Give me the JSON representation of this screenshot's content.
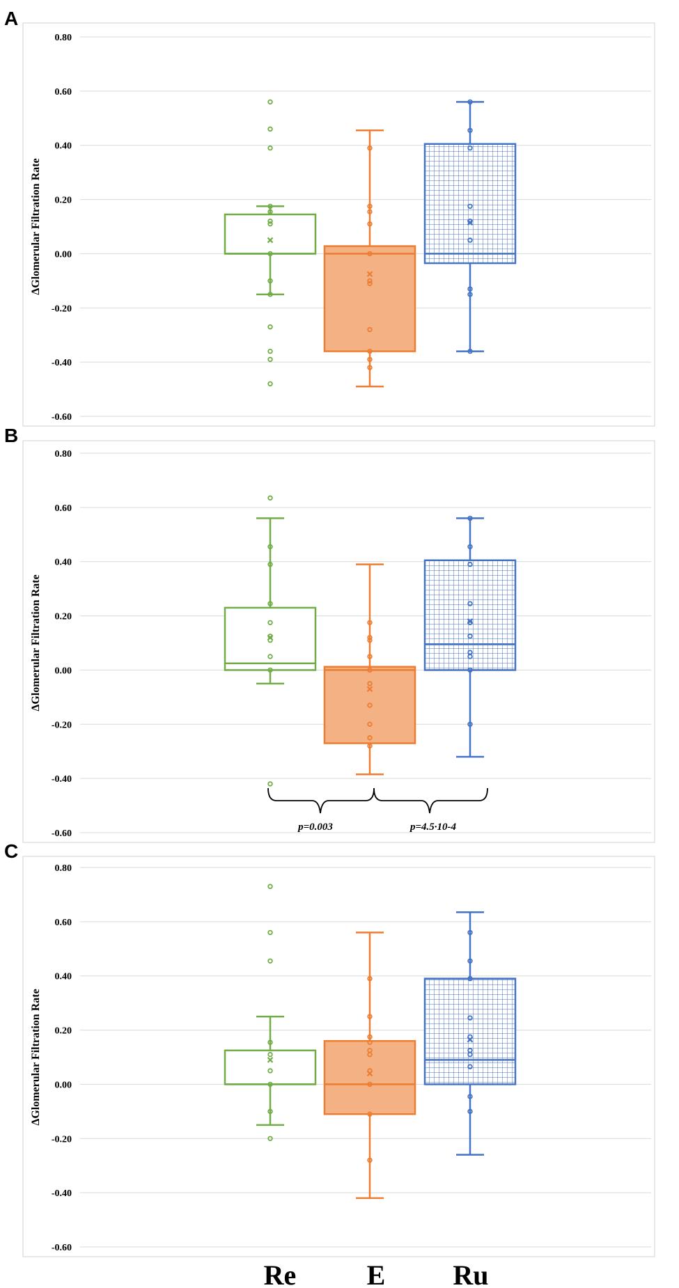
{
  "categories": [
    "Re",
    "E",
    "Ru"
  ],
  "colors": {
    "Re": "#70AD47",
    "E": "#ED7D31",
    "Ru": "#4472C4",
    "E_fill": "#F4B183",
    "grid": "#D9D9D9",
    "frame": "#D0D0D0"
  },
  "chart_data": [
    {
      "type": "box",
      "panel": "A",
      "ylabel": "ΔGlomerular Filtration Rate",
      "ylim": [
        -0.6,
        0.8
      ],
      "yticks": [
        "0.80",
        "0.60",
        "0.40",
        "0.20",
        "0.00",
        "-0.20",
        "-0.40",
        "-0.60"
      ],
      "series": [
        {
          "name": "Re",
          "q1": 0.0,
          "median": 0.0,
          "q3": 0.145,
          "whisker_low": -0.15,
          "whisker_high": 0.175,
          "mean": 0.05,
          "points": [
            0.56,
            0.46,
            0.39,
            0.175,
            0.155,
            0.12,
            0.11,
            0.0,
            -0.1,
            -0.15,
            -0.27,
            -0.36,
            -0.39,
            -0.48
          ]
        },
        {
          "name": "E",
          "q1": -0.36,
          "median": 0.0,
          "q3": 0.028,
          "whisker_low": -0.49,
          "whisker_high": 0.455,
          "mean": -0.075,
          "points": [
            0.39,
            0.175,
            0.155,
            0.11,
            0.0,
            -0.1,
            -0.11,
            -0.28,
            -0.36,
            -0.39,
            -0.42
          ]
        },
        {
          "name": "Ru",
          "q1": -0.035,
          "median": 0.0,
          "q3": 0.405,
          "whisker_low": -0.36,
          "whisker_high": 0.56,
          "mean": 0.115,
          "points": [
            0.56,
            0.455,
            0.39,
            0.175,
            0.12,
            0.05,
            -0.13,
            -0.15,
            -0.36
          ]
        }
      ]
    },
    {
      "type": "box",
      "panel": "B",
      "ylabel": "ΔGlomerular Filtration Rate",
      "ylim": [
        -0.6,
        0.8
      ],
      "yticks": [
        "0.80",
        "0.60",
        "0.40",
        "0.20",
        "0.00",
        "-0.20",
        "-0.40",
        "-0.60"
      ],
      "series": [
        {
          "name": "Re",
          "q1": 0.0,
          "median": 0.025,
          "q3": 0.23,
          "whisker_low": -0.05,
          "whisker_high": 0.56,
          "mean": 0.12,
          "points": [
            0.635,
            0.455,
            0.39,
            0.245,
            0.175,
            0.125,
            0.11,
            0.05,
            0.0,
            -0.42
          ]
        },
        {
          "name": "E",
          "q1": -0.27,
          "median": 0.0,
          "q3": 0.012,
          "whisker_low": -0.385,
          "whisker_high": 0.39,
          "mean": -0.07,
          "points": [
            0.175,
            0.12,
            0.11,
            0.05,
            0.0,
            -0.05,
            -0.13,
            -0.2,
            -0.25,
            -0.28
          ]
        },
        {
          "name": "Ru",
          "q1": 0.0,
          "median": 0.095,
          "q3": 0.405,
          "whisker_low": -0.32,
          "whisker_high": 0.56,
          "mean": 0.18,
          "points": [
            0.56,
            0.455,
            0.39,
            0.245,
            0.175,
            0.125,
            0.065,
            0.05,
            0.0,
            -0.2
          ]
        }
      ],
      "annotations": [
        "p=0.003",
        "p=4.5·10-4"
      ]
    },
    {
      "type": "box",
      "panel": "C",
      "ylabel": "ΔGlomerular Filtration Rate",
      "ylim": [
        -0.6,
        0.8
      ],
      "yticks": [
        "0.80",
        "0.60",
        "0.40",
        "0.20",
        "0.00",
        "-0.20",
        "-0.40",
        "-0.60"
      ],
      "series": [
        {
          "name": "Re",
          "q1": 0.0,
          "median": 0.0,
          "q3": 0.125,
          "whisker_low": -0.15,
          "whisker_high": 0.25,
          "mean": 0.09,
          "points": [
            0.73,
            0.56,
            0.455,
            0.155,
            0.11,
            0.05,
            0.0,
            -0.1,
            -0.2
          ]
        },
        {
          "name": "E",
          "q1": -0.11,
          "median": 0.0,
          "q3": 0.16,
          "whisker_low": -0.42,
          "whisker_high": 0.56,
          "mean": 0.04,
          "points": [
            0.39,
            0.25,
            0.175,
            0.155,
            0.125,
            0.11,
            0.05,
            0.0,
            -0.11,
            -0.28
          ]
        },
        {
          "name": "Ru",
          "q1": 0.0,
          "median": 0.09,
          "q3": 0.39,
          "whisker_low": -0.26,
          "whisker_high": 0.635,
          "mean": 0.165,
          "points": [
            0.56,
            0.455,
            0.39,
            0.245,
            0.175,
            0.125,
            0.11,
            0.065,
            -0.045,
            -0.1
          ]
        }
      ]
    }
  ]
}
